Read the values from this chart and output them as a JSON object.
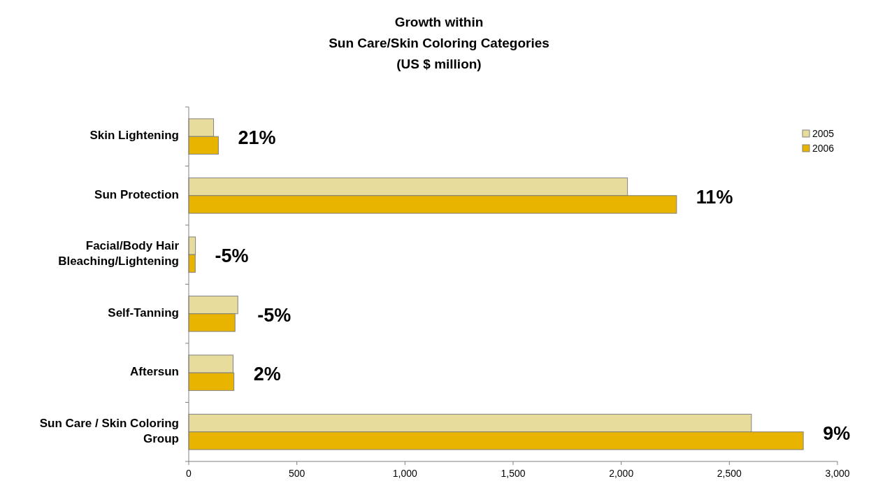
{
  "chart_data": {
    "type": "bar",
    "orientation": "horizontal",
    "title": "Growth within\nSun Care/Skin Coloring Categories\n(US $ million)",
    "categories": [
      "Skin Lightening",
      "Sun Protection",
      "Facial/Body Hair\nBleaching/Lightening",
      "Self-Tanning",
      "Aftersun",
      "Sun Care / Skin Coloring\nGroup"
    ],
    "series": [
      {
        "name": "2005",
        "color": "#e8dc9c",
        "values": [
          115,
          2029,
          31,
          227,
          205,
          2602
        ]
      },
      {
        "name": "2006",
        "color": "#e8b400",
        "values": [
          137,
          2256,
          30,
          214,
          209,
          2842
        ]
      }
    ],
    "xlim": [
      0,
      3000
    ],
    "xticks": [
      0,
      {
        "value": 500,
        "label": "500"
      },
      {
        "value": 1000,
        "label": "1,000"
      },
      {
        "value": 1500,
        "label": "1,500"
      },
      {
        "value": 2000,
        "label": "2,000"
      },
      {
        "value": 2500,
        "label": "2,500"
      },
      {
        "value": 3000,
        "label": "3,000"
      }
    ],
    "annotations": [
      "21%",
      "11%",
      "-5%",
      "-5%",
      "2%",
      "9%"
    ],
    "legend": "top right",
    "grid": false
  }
}
